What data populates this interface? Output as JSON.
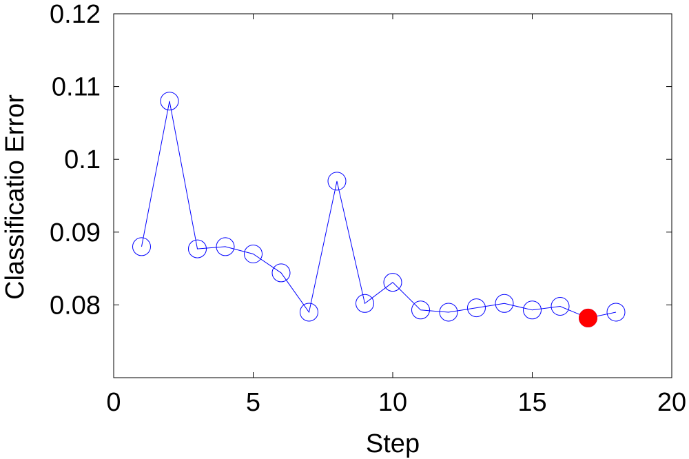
{
  "chart_data": {
    "type": "line",
    "title": "",
    "xlabel": "Step",
    "ylabel": "Classificatio Error",
    "xlim": [
      0,
      20
    ],
    "ylim": [
      0.07,
      0.12
    ],
    "x_ticks": [
      0,
      5,
      10,
      15,
      20
    ],
    "x_tick_labels": [
      "0",
      "5",
      "10",
      "15",
      "20"
    ],
    "y_ticks": [
      0.08,
      0.09,
      0.1,
      0.11,
      0.12
    ],
    "y_tick_labels": [
      "0.08",
      "0.09",
      "0.1",
      "0.11",
      "0.12"
    ],
    "grid": false,
    "series": [
      {
        "color": "#0000ff",
        "marker": "open-circle",
        "x": [
          1,
          2,
          3,
          4,
          5,
          6,
          7,
          8,
          9,
          10,
          11,
          12,
          13,
          14,
          15,
          16,
          17,
          18
        ],
        "y": [
          0.088,
          0.108,
          0.0877,
          0.088,
          0.087,
          0.0844,
          0.079,
          0.097,
          0.0802,
          0.0831,
          0.0793,
          0.079,
          0.0796,
          0.0802,
          0.0793,
          0.0798,
          0.0782,
          0.079
        ]
      }
    ],
    "highlight": {
      "x": 17,
      "y": 0.0782,
      "color": "#ff0000"
    }
  }
}
